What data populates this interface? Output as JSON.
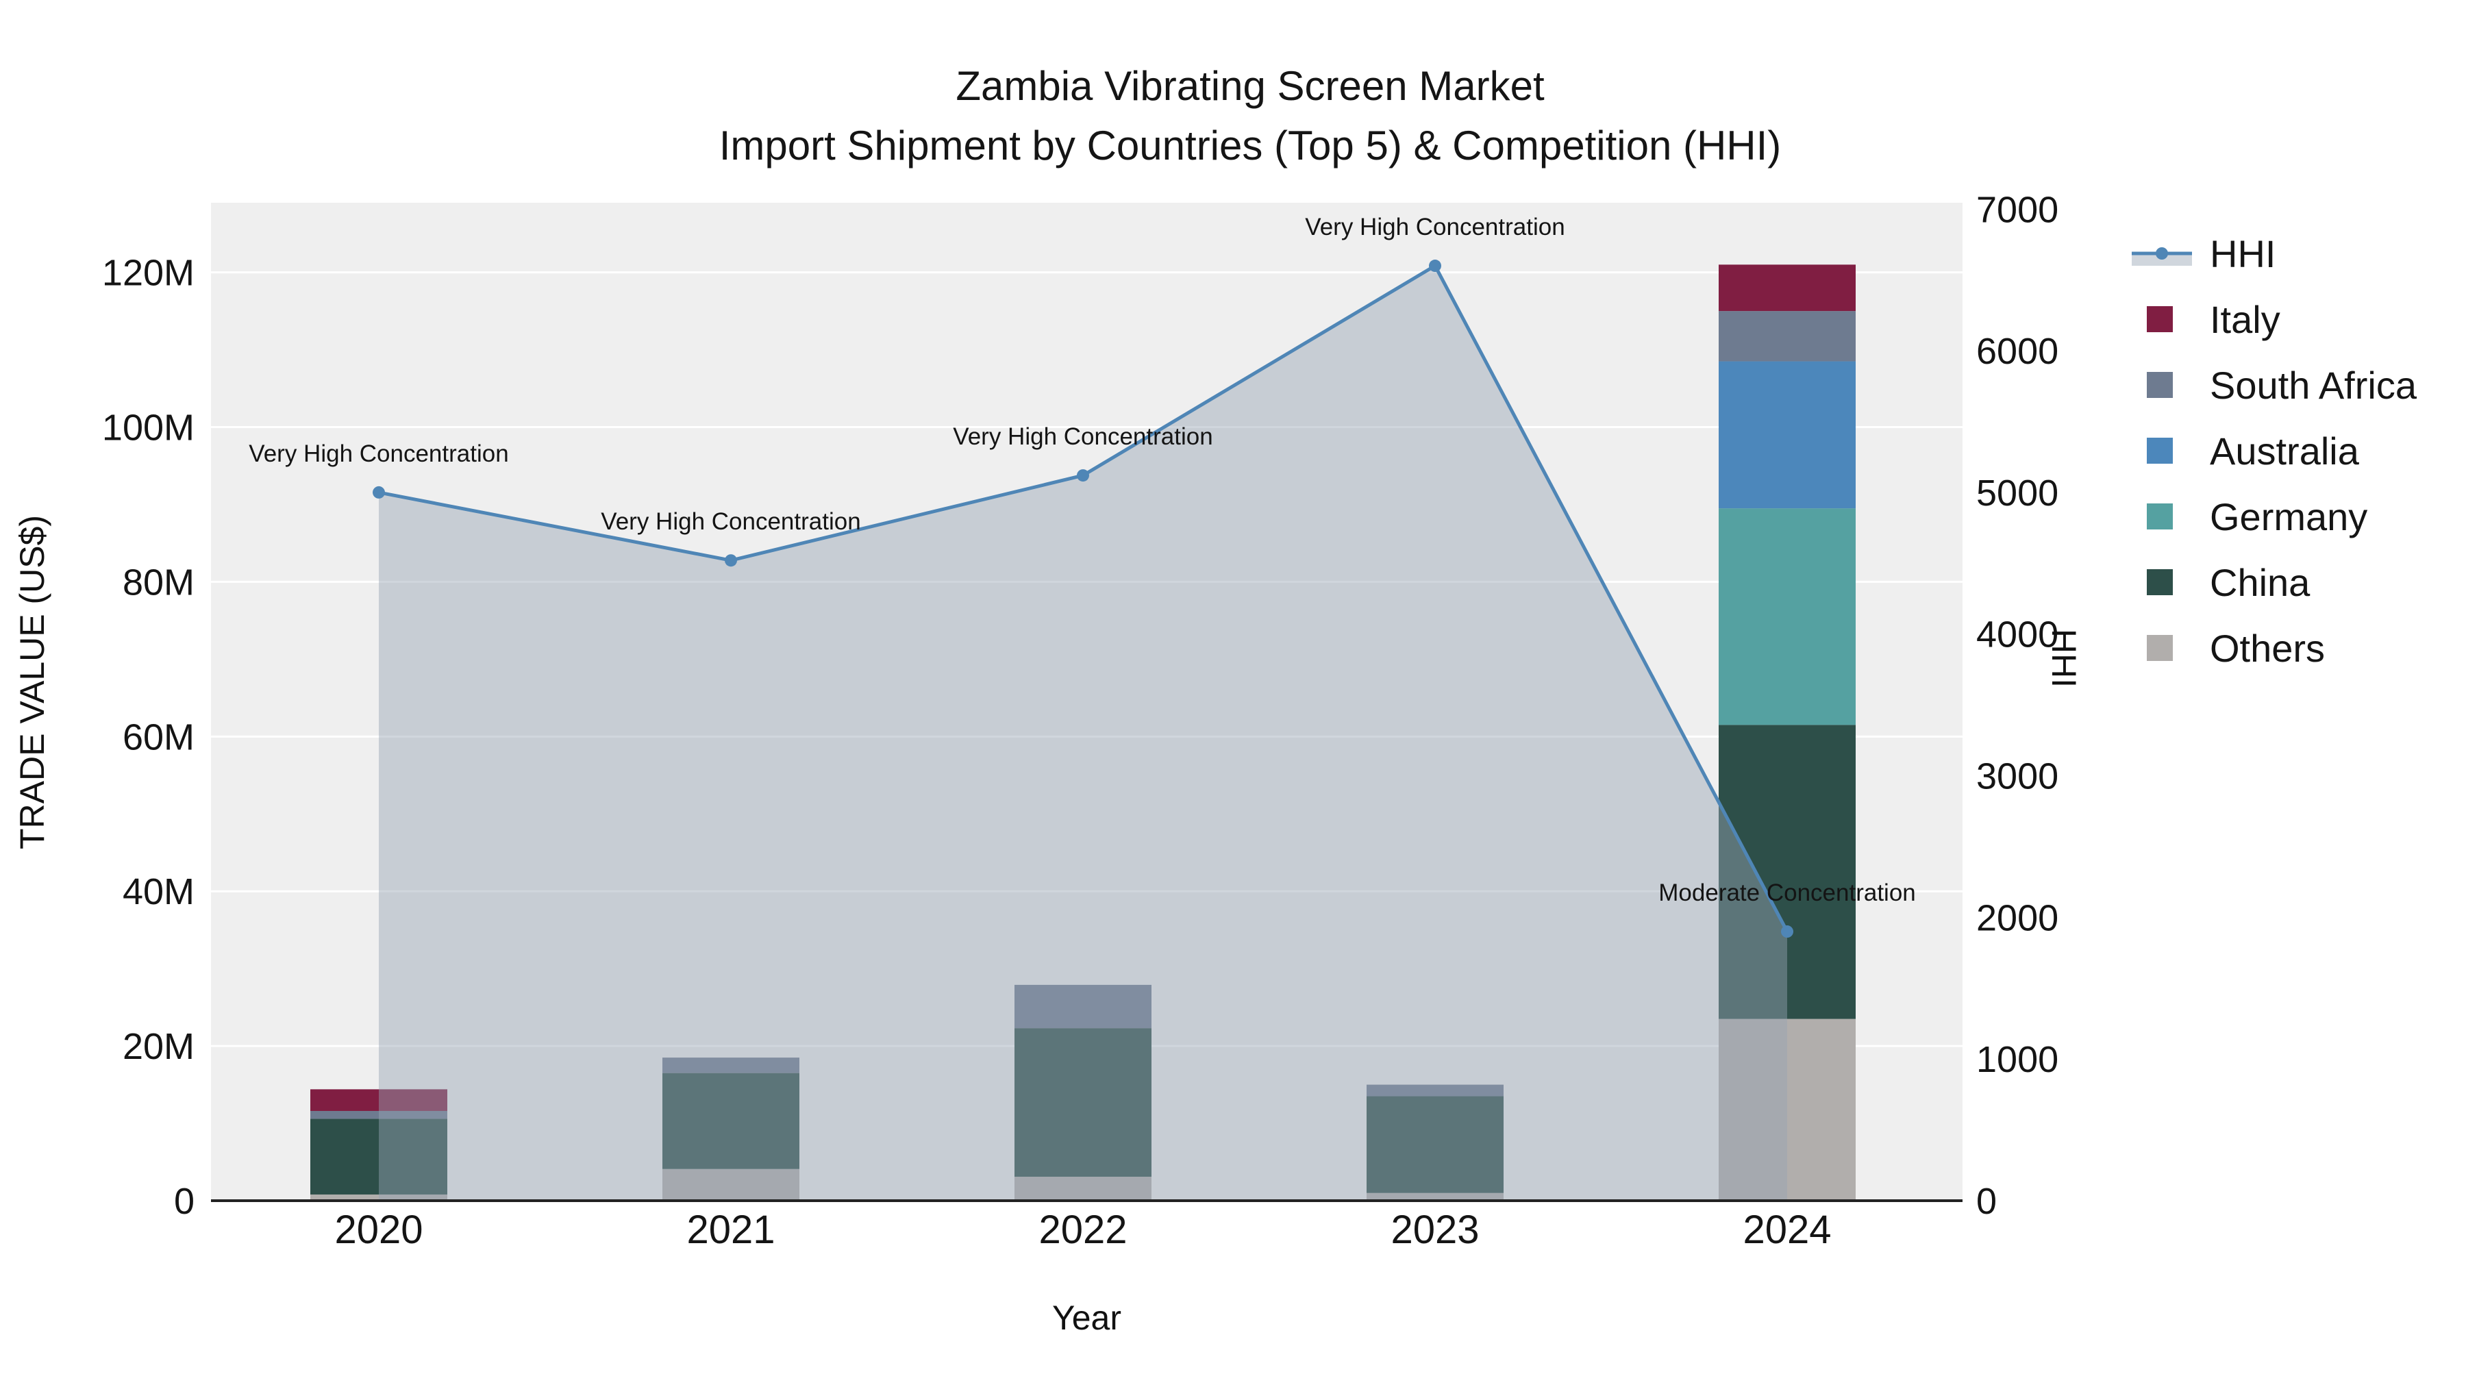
{
  "chart_data": {
    "type": "combo",
    "title_lines": [
      "Zambia Vibrating Screen Market",
      "Import Shipment by Countries (Top 5) & Competition (HHI)"
    ],
    "xlabel": "Year",
    "ylabel_left": "TRADE VALUE (US$)",
    "ylabel_right": "HHI",
    "plot_background": "#efefef",
    "categories": [
      "2020",
      "2021",
      "2022",
      "2023",
      "2024"
    ],
    "bars": {
      "type": "stacked_bar",
      "unit": "M US$",
      "stack_order_bottom_to_top": [
        "Others",
        "China",
        "Germany",
        "Australia",
        "South Africa",
        "Italy"
      ],
      "series": [
        {
          "name": "Others",
          "color": "#b1aeac",
          "values": [
            0.8,
            4.1,
            3.1,
            1.0,
            23.5
          ]
        },
        {
          "name": "China",
          "color": "#2d4f49",
          "values": [
            9.8,
            12.4,
            19.2,
            12.5,
            38.0
          ]
        },
        {
          "name": "Germany",
          "color": "#55a1a1",
          "values": [
            0,
            0,
            0,
            0,
            28.0
          ]
        },
        {
          "name": "Australia",
          "color": "#4c87bb",
          "values": [
            0,
            0,
            0,
            0,
            19.0
          ]
        },
        {
          "name": "South Africa",
          "color": "#6e7b90",
          "values": [
            1.0,
            2.0,
            5.6,
            1.5,
            6.5
          ]
        },
        {
          "name": "Italy",
          "color": "#801e42",
          "values": [
            2.8,
            0,
            0,
            0,
            6.0
          ]
        }
      ]
    },
    "line": {
      "name": "HHI",
      "color": "#4f86b6",
      "fill": "rgba(151,164,180,0.45)",
      "values": [
        5000,
        4520,
        5120,
        6600,
        1900
      ],
      "annotations": [
        "Very High Concentration",
        "Very High Concentration",
        "Very High Concentration",
        "Very High Concentration",
        "Moderate Concentration"
      ]
    },
    "axes": {
      "left": {
        "ticks": [
          0,
          20,
          40,
          60,
          80,
          100,
          120
        ],
        "labels": [
          "0",
          "20M",
          "40M",
          "60M",
          "80M",
          "100M",
          "120M"
        ],
        "max": 129
      },
      "right": {
        "ticks": [
          0,
          1000,
          2000,
          3000,
          4000,
          5000,
          6000,
          7000
        ],
        "labels": [
          "0",
          "1000",
          "2000",
          "3000",
          "4000",
          "5000",
          "6000",
          "7000"
        ],
        "max": 7045
      }
    },
    "legend": [
      {
        "name": "HHI",
        "type": "line"
      },
      {
        "name": "Italy",
        "type": "swatch",
        "color": "#801e42"
      },
      {
        "name": "South Africa",
        "type": "swatch",
        "color": "#6e7b90"
      },
      {
        "name": "Australia",
        "type": "swatch",
        "color": "#4c87bb"
      },
      {
        "name": "Germany",
        "type": "swatch",
        "color": "#55a1a1"
      },
      {
        "name": "China",
        "type": "swatch",
        "color": "#2d4f49"
      },
      {
        "name": "Others",
        "type": "swatch",
        "color": "#b1aeac"
      }
    ]
  }
}
